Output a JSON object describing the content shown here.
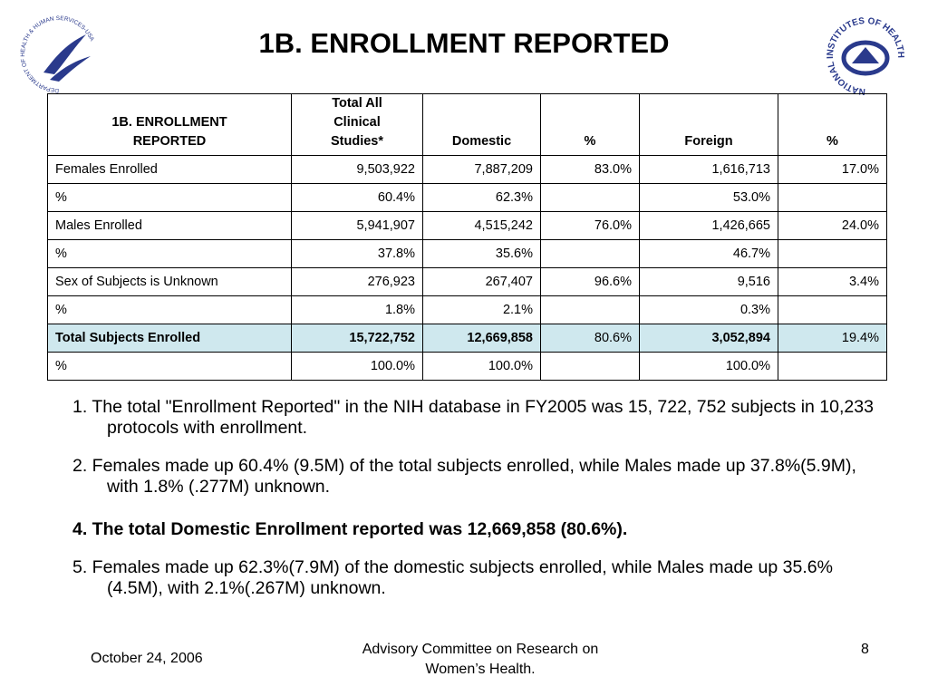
{
  "title": "1B. ENROLLMENT REPORTED",
  "logos": {
    "left": "DEPARTMENT OF HEALTH & HUMAN SERVICES-USA",
    "right": "NATIONAL INSTITUTES OF HEALTH"
  },
  "table": {
    "header": [
      [
        "1B. ENROLLMENT",
        "REPORTED"
      ],
      [
        "Total All",
        "Clinical",
        "Studies*"
      ],
      [
        "Domestic"
      ],
      [
        "%"
      ],
      [
        "Foreign"
      ],
      [
        "%"
      ]
    ],
    "rows": [
      [
        "Females Enrolled",
        "9,503,922",
        "7,887,209",
        "83.0%",
        "1,616,713",
        "17.0%"
      ],
      [
        "%",
        "60.4%",
        "62.3%",
        null,
        "53.0%",
        null
      ],
      [
        "Males Enrolled",
        "5,941,907",
        "4,515,242",
        "76.0%",
        "1,426,665",
        "24.0%"
      ],
      [
        "%",
        "37.8%",
        "35.6%",
        null,
        "46.7%",
        null
      ],
      [
        "Sex of Subjects is Unknown",
        "276,923",
        "267,407",
        "96.6%",
        "9,516",
        "3.4%"
      ],
      [
        "%",
        "1.8%",
        "2.1%",
        null,
        "0.3%",
        null
      ],
      [
        "Total Subjects Enrolled",
        "15,722,752",
        "12,669,858",
        "80.6%",
        "3,052,894",
        "19.4%"
      ],
      [
        "%",
        "100.0%",
        "100.0%",
        null,
        "100.0%",
        null
      ]
    ]
  },
  "notes": [
    "1. The total \"Enrollment Reported\" in the NIH database in FY2005 was 15, 722, 752 subjects in 10,233 protocols with enrollment.",
    "2. Females made up 60.4% (9.5M) of the total subjects enrolled, while Males made up 37.8%(5.9M), with 1.8% (.277M) unknown.",
    "4. The total Domestic Enrollment reported was 12,669,858 (80.6%).",
    "5. Females made up 62.3%(7.9M) of the domestic subjects enrolled, while Males made up 35.6%(4.5M), with 2.1%(.267M) unknown."
  ],
  "footer": {
    "date": "October 24, 2006",
    "center": [
      "Advisory Committee on Research on",
      "Women’s Health."
    ],
    "page": "8"
  }
}
